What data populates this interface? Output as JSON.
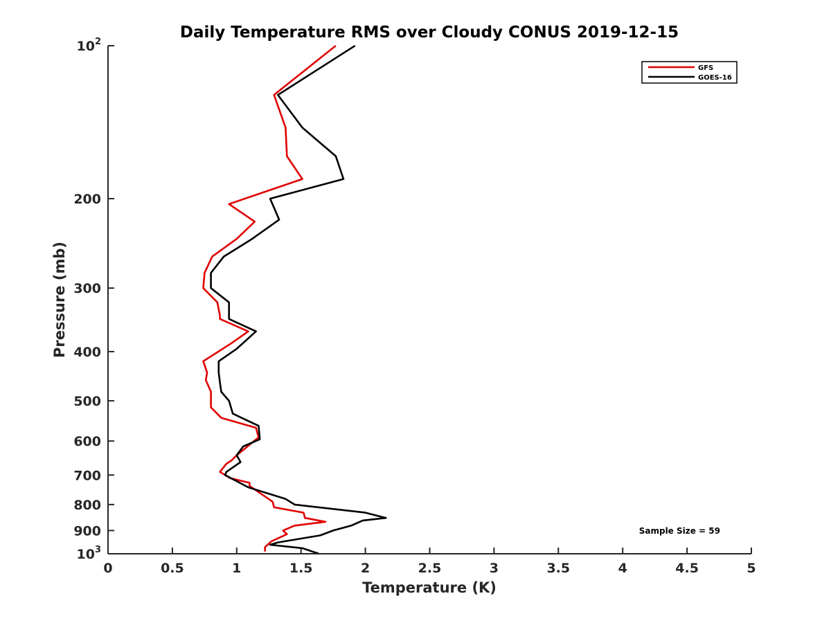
{
  "chart_data": {
    "type": "line",
    "title": "Daily Temperature RMS over Cloudy CONUS 2019-12-15",
    "xlabel": "Temperature (K)",
    "ylabel": "Pressure (mb)",
    "xlim": [
      0,
      5
    ],
    "ylim": [
      100,
      1000
    ],
    "y_scale": "log",
    "y_reversed": true,
    "grid": false,
    "legend_position": "top-right",
    "x_ticks": [
      "0",
      "0.5",
      "1",
      "1.5",
      "2",
      "2.5",
      "3",
      "3.5",
      "4",
      "4.5",
      "5"
    ],
    "y_ticks": [
      {
        "value": 100,
        "base": "10",
        "exp": "2"
      },
      {
        "value": 200,
        "label": "200"
      },
      {
        "value": 300,
        "label": "300"
      },
      {
        "value": 400,
        "label": "400"
      },
      {
        "value": 500,
        "label": "500"
      },
      {
        "value": 600,
        "label": "600"
      },
      {
        "value": 700,
        "label": "700"
      },
      {
        "value": 800,
        "label": "800"
      },
      {
        "value": 900,
        "label": "900"
      },
      {
        "value": 1000,
        "base": "10",
        "exp": "3"
      }
    ],
    "annotation": "Sample Size = 59",
    "series": [
      {
        "name": "GFS",
        "color": "#e00000",
        "points": [
          [
            1.77,
            100
          ],
          [
            1.29,
            125
          ],
          [
            1.38,
            145
          ],
          [
            1.39,
            165
          ],
          [
            1.51,
            183
          ],
          [
            0.94,
            205
          ],
          [
            1.14,
            222
          ],
          [
            1.0,
            240
          ],
          [
            0.81,
            260
          ],
          [
            0.75,
            280
          ],
          [
            0.74,
            300
          ],
          [
            0.85,
            320
          ],
          [
            0.87,
            340
          ],
          [
            0.87,
            345
          ],
          [
            1.09,
            365
          ],
          [
            0.96,
            385
          ],
          [
            0.74,
            418
          ],
          [
            0.77,
            440
          ],
          [
            0.76,
            455
          ],
          [
            0.8,
            480
          ],
          [
            0.8,
            500
          ],
          [
            0.8,
            515
          ],
          [
            0.88,
            540
          ],
          [
            1.15,
            565
          ],
          [
            1.17,
            590
          ],
          [
            1.0,
            640
          ],
          [
            0.96,
            655
          ],
          [
            0.92,
            665
          ],
          [
            0.87,
            690
          ],
          [
            0.95,
            710
          ],
          [
            1.1,
            725
          ],
          [
            1.1,
            735
          ],
          [
            1.28,
            790
          ],
          [
            1.29,
            810
          ],
          [
            1.52,
            830
          ],
          [
            1.53,
            850
          ],
          [
            1.69,
            865
          ],
          [
            1.45,
            880
          ],
          [
            1.36,
            900
          ],
          [
            1.39,
            915
          ],
          [
            1.27,
            945
          ],
          [
            1.22,
            970
          ],
          [
            1.22,
            990
          ]
        ]
      },
      {
        "name": "GOES-16",
        "color": "#000000",
        "points": [
          [
            1.92,
            100
          ],
          [
            1.32,
            125
          ],
          [
            1.51,
            145
          ],
          [
            1.77,
            165
          ],
          [
            1.83,
            183
          ],
          [
            1.26,
            200
          ],
          [
            1.33,
            220
          ],
          [
            1.12,
            240
          ],
          [
            0.9,
            260
          ],
          [
            0.8,
            280
          ],
          [
            0.8,
            300
          ],
          [
            0.94,
            320
          ],
          [
            0.94,
            345
          ],
          [
            1.15,
            365
          ],
          [
            1.0,
            395
          ],
          [
            0.86,
            418
          ],
          [
            0.86,
            440
          ],
          [
            0.87,
            460
          ],
          [
            0.88,
            480
          ],
          [
            0.94,
            500
          ],
          [
            0.97,
            530
          ],
          [
            1.17,
            560
          ],
          [
            1.18,
            595
          ],
          [
            1.05,
            615
          ],
          [
            1.0,
            640
          ],
          [
            1.03,
            660
          ],
          [
            0.92,
            690
          ],
          [
            0.91,
            700
          ],
          [
            1.09,
            740
          ],
          [
            1.38,
            780
          ],
          [
            1.45,
            800
          ],
          [
            2.0,
            830
          ],
          [
            2.16,
            850
          ],
          [
            1.98,
            860
          ],
          [
            1.89,
            880
          ],
          [
            1.75,
            900
          ],
          [
            1.65,
            920
          ],
          [
            1.32,
            950
          ],
          [
            1.26,
            960
          ],
          [
            1.51,
            975
          ],
          [
            1.64,
            1000
          ]
        ]
      }
    ]
  }
}
